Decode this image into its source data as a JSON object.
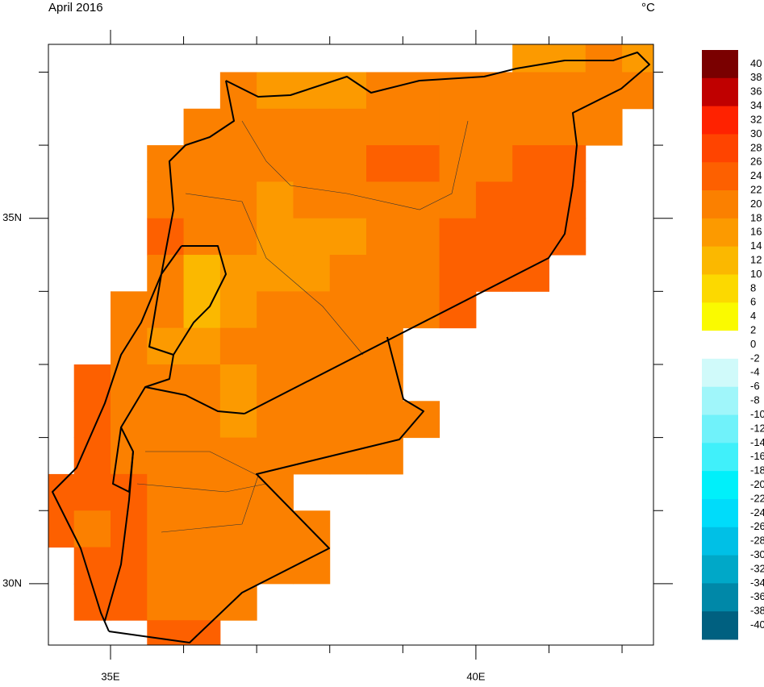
{
  "title": "April 2016",
  "units": "°C",
  "axes": {
    "xlim": [
      34.15,
      42.43
    ],
    "ylim": [
      29.16,
      37.38
    ],
    "xticks": [
      {
        "value": 35,
        "label": "35E"
      },
      {
        "value": 40,
        "label": "40E"
      }
    ],
    "yticks": [
      {
        "value": 35,
        "label": "35N"
      },
      {
        "value": 30,
        "label": "30N"
      }
    ],
    "xminor": [
      36,
      37,
      38,
      39,
      41,
      42
    ],
    "yminor": [
      37,
      36,
      34,
      33,
      32,
      31
    ]
  },
  "grid": {
    "lon0": 34,
    "lat0": 37.5,
    "step": 0.5,
    "values": [
      [
        null,
        null,
        null,
        null,
        null,
        null,
        null,
        null,
        null,
        null,
        null,
        null,
        null,
        15,
        15,
        19,
        15
      ],
      [
        null,
        null,
        null,
        null,
        null,
        19,
        15,
        15,
        15,
        19,
        19,
        19,
        19,
        19,
        19,
        19,
        19
      ],
      [
        null,
        null,
        null,
        null,
        19,
        19,
        19,
        19,
        19,
        19,
        19,
        19,
        19,
        19,
        19,
        19,
        null
      ],
      [
        null,
        null,
        null,
        19,
        19,
        19,
        19,
        19,
        19,
        23,
        23,
        19,
        19,
        23,
        23,
        null,
        null
      ],
      [
        null,
        null,
        null,
        19,
        19,
        19,
        15,
        19,
        19,
        19,
        19,
        19,
        23,
        23,
        23,
        null,
        null
      ],
      [
        null,
        null,
        null,
        23,
        19,
        19,
        15,
        15,
        15,
        19,
        19,
        23,
        23,
        23,
        23,
        null,
        null
      ],
      [
        null,
        null,
        null,
        19,
        12,
        15,
        15,
        15,
        19,
        19,
        19,
        23,
        23,
        23,
        null,
        null,
        null
      ],
      [
        null,
        null,
        19,
        19,
        12,
        15,
        19,
        19,
        19,
        19,
        19,
        23,
        null,
        null,
        null,
        null,
        null
      ],
      [
        null,
        null,
        19,
        15,
        15,
        19,
        19,
        19,
        19,
        19,
        null,
        null,
        null,
        null,
        null,
        null,
        null
      ],
      [
        null,
        23,
        19,
        19,
        19,
        15,
        19,
        19,
        19,
        19,
        null,
        null,
        null,
        null,
        null,
        null,
        null
      ],
      [
        null,
        23,
        19,
        19,
        19,
        15,
        19,
        19,
        19,
        19,
        19,
        null,
        null,
        null,
        null,
        null,
        null
      ],
      [
        null,
        23,
        19,
        19,
        19,
        19,
        19,
        19,
        19,
        19,
        null,
        null,
        null,
        null,
        null,
        null,
        null
      ],
      [
        23,
        23,
        23,
        19,
        19,
        19,
        19,
        null,
        null,
        null,
        null,
        null,
        null,
        null,
        null,
        null,
        null
      ],
      [
        23,
        19,
        23,
        19,
        19,
        19,
        19,
        19,
        null,
        null,
        null,
        null,
        null,
        null,
        null,
        null,
        null
      ],
      [
        null,
        23,
        23,
        19,
        19,
        19,
        19,
        19,
        null,
        null,
        null,
        null,
        null,
        null,
        null,
        null,
        null
      ],
      [
        null,
        23,
        23,
        19,
        19,
        19,
        null,
        null,
        null,
        null,
        null,
        null,
        null,
        null,
        null,
        null,
        null
      ],
      [
        null,
        null,
        null,
        23,
        23,
        null,
        null,
        null,
        null,
        null,
        null,
        null,
        null,
        null,
        null,
        null,
        null
      ]
    ]
  },
  "colorbar": {
    "levels": [
      40,
      38,
      36,
      34,
      32,
      30,
      28,
      26,
      24,
      22,
      20,
      18,
      16,
      14,
      12,
      10,
      8,
      6,
      4,
      2,
      0,
      -2,
      -4,
      -6,
      -8,
      -10,
      -12,
      -14,
      -16,
      -18,
      -20,
      -22,
      -24,
      -26,
      -28,
      -30,
      -32,
      -34,
      -36,
      -38,
      -40
    ],
    "colors": [
      "#7a0000",
      "#7a0000",
      "#c00000",
      "#c00000",
      "#ff2200",
      "#ff2200",
      "#ff4400",
      "#ff4400",
      "#fd6000",
      "#fd6000",
      "#fb8000",
      "#fb8000",
      "#fc9a00",
      "#fc9a00",
      "#fbb800",
      "#fbb800",
      "#fcd900",
      "#fcd900",
      "#fafa00",
      "#fafa00",
      "#ffffff",
      "#ffffff",
      "#d0fafa",
      "#d0fafa",
      "#a0f6fa",
      "#a0f6fa",
      "#70f2fa",
      "#70f2fa",
      "#40f0fa",
      "#40f0fa",
      "#00f0fa",
      "#00f0fa",
      "#00dcfa",
      "#00dcfa",
      "#00c0e6",
      "#00c0e6",
      "#00a8c8",
      "#00a8c8",
      "#0088a8",
      "#0088a8",
      "#006080",
      "#006080"
    ]
  }
}
